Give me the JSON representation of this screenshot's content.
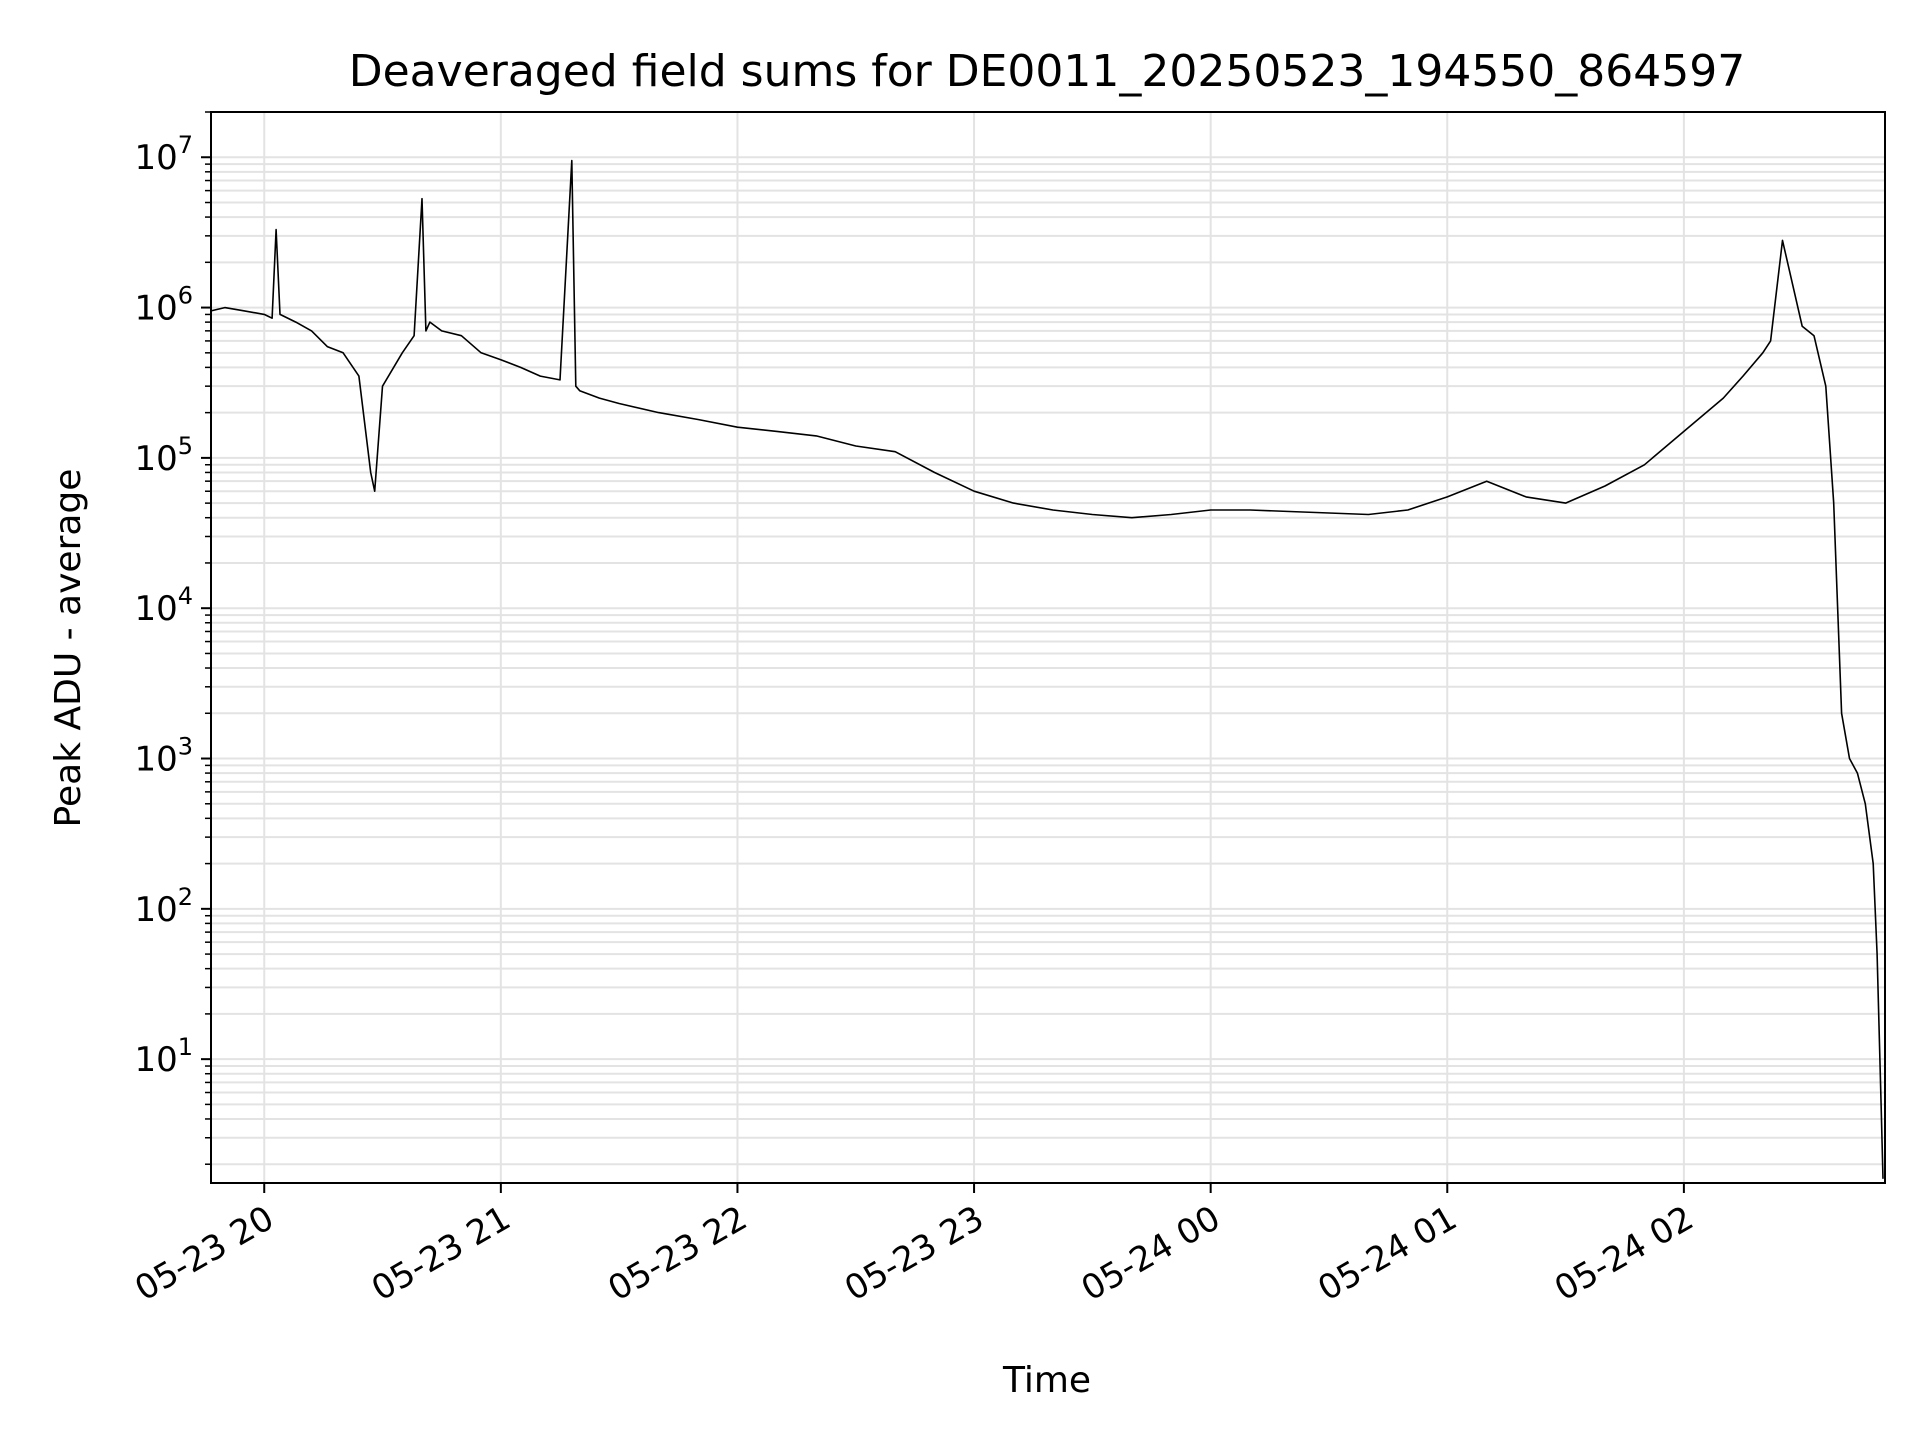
{
  "chart_data": {
    "type": "line",
    "title": "Deaveraged field sums for DE0011_20250523_194550_864597",
    "xlabel": "Time",
    "ylabel": "Peak ADU - average",
    "y_scale": "log",
    "ylim": [
      1.5,
      20000000
    ],
    "xlim": [
      "2025-05-23 19:46:30",
      "2025-05-24 02:51:00"
    ],
    "grid": "major and minor",
    "line_color": "#000000",
    "x_ticks": [
      {
        "label": "05-23 20",
        "value": "2025-05-23 20:00"
      },
      {
        "label": "05-23 21",
        "value": "2025-05-23 21:00"
      },
      {
        "label": "05-23 22",
        "value": "2025-05-23 22:00"
      },
      {
        "label": "05-23 23",
        "value": "2025-05-23 23:00"
      },
      {
        "label": "05-24 00",
        "value": "2025-05-24 00:00"
      },
      {
        "label": "05-24 01",
        "value": "2025-05-24 01:00"
      },
      {
        "label": "05-24 02",
        "value": "2025-05-24 02:00"
      }
    ],
    "y_ticks": [
      {
        "base": "10",
        "exp": "1",
        "value": 10
      },
      {
        "base": "10",
        "exp": "2",
        "value": 100
      },
      {
        "base": "10",
        "exp": "3",
        "value": 1000
      },
      {
        "base": "10",
        "exp": "4",
        "value": 10000
      },
      {
        "base": "10",
        "exp": "5",
        "value": 100000
      },
      {
        "base": "10",
        "exp": "6",
        "value": 1000000
      },
      {
        "base": "10",
        "exp": "7",
        "value": 10000000
      }
    ],
    "series": [
      {
        "x": [
          "2025-05-23 19:46:30",
          "2025-05-23 19:50",
          "2025-05-23 19:55",
          "2025-05-23 20:00",
          "2025-05-23 20:02",
          "2025-05-23 20:03",
          "2025-05-23 20:04",
          "2025-05-23 20:08",
          "2025-05-23 20:12",
          "2025-05-23 20:16",
          "2025-05-23 20:20",
          "2025-05-23 20:24",
          "2025-05-23 20:27",
          "2025-05-23 20:28",
          "2025-05-23 20:30",
          "2025-05-23 20:35",
          "2025-05-23 20:38",
          "2025-05-23 20:40",
          "2025-05-23 20:41",
          "2025-05-23 20:42",
          "2025-05-23 20:45",
          "2025-05-23 20:50",
          "2025-05-23 20:55",
          "2025-05-23 21:00",
          "2025-05-23 21:05",
          "2025-05-23 21:10",
          "2025-05-23 21:15",
          "2025-05-23 21:18",
          "2025-05-23 21:19",
          "2025-05-23 21:20",
          "2025-05-23 21:25",
          "2025-05-23 21:30",
          "2025-05-23 21:40",
          "2025-05-23 21:50",
          "2025-05-23 22:00",
          "2025-05-23 22:10",
          "2025-05-23 22:20",
          "2025-05-23 22:30",
          "2025-05-23 22:40",
          "2025-05-23 22:50",
          "2025-05-23 23:00",
          "2025-05-23 23:10",
          "2025-05-23 23:20",
          "2025-05-23 23:30",
          "2025-05-23 23:40",
          "2025-05-23 23:50",
          "2025-05-24 00:00",
          "2025-05-24 00:10",
          "2025-05-24 00:20",
          "2025-05-24 00:30",
          "2025-05-24 00:40",
          "2025-05-24 00:50",
          "2025-05-24 01:00",
          "2025-05-24 01:10",
          "2025-05-24 01:20",
          "2025-05-24 01:30",
          "2025-05-24 01:40",
          "2025-05-24 01:50",
          "2025-05-24 02:00",
          "2025-05-24 02:10",
          "2025-05-24 02:15",
          "2025-05-24 02:20",
          "2025-05-24 02:22",
          "2025-05-24 02:25",
          "2025-05-24 02:30",
          "2025-05-24 02:33",
          "2025-05-24 02:36",
          "2025-05-24 02:38",
          "2025-05-24 02:40",
          "2025-05-24 02:42",
          "2025-05-24 02:44",
          "2025-05-24 02:46",
          "2025-05-24 02:48",
          "2025-05-24 02:49",
          "2025-05-24 02:50",
          "2025-05-24 02:50:30"
        ],
        "y": [
          950000,
          1000000,
          950000,
          900000,
          850000,
          3300000,
          900000,
          800000,
          700000,
          550000,
          500000,
          350000,
          80000,
          60000,
          300000,
          500000,
          650000,
          5300000,
          700000,
          800000,
          700000,
          650000,
          500000,
          450000,
          400000,
          350000,
          330000,
          9500000,
          300000,
          280000,
          250000,
          230000,
          200000,
          180000,
          160000,
          150000,
          140000,
          120000,
          110000,
          80000,
          60000,
          50000,
          45000,
          42000,
          40000,
          42000,
          45000,
          45000,
          44000,
          43000,
          42000,
          45000,
          55000,
          70000,
          55000,
          50000,
          65000,
          90000,
          150000,
          250000,
          350000,
          500000,
          600000,
          2800000,
          750000,
          650000,
          300000,
          50000,
          2000,
          1000,
          800,
          500,
          200,
          50,
          5,
          1.6
        ]
      }
    ]
  }
}
